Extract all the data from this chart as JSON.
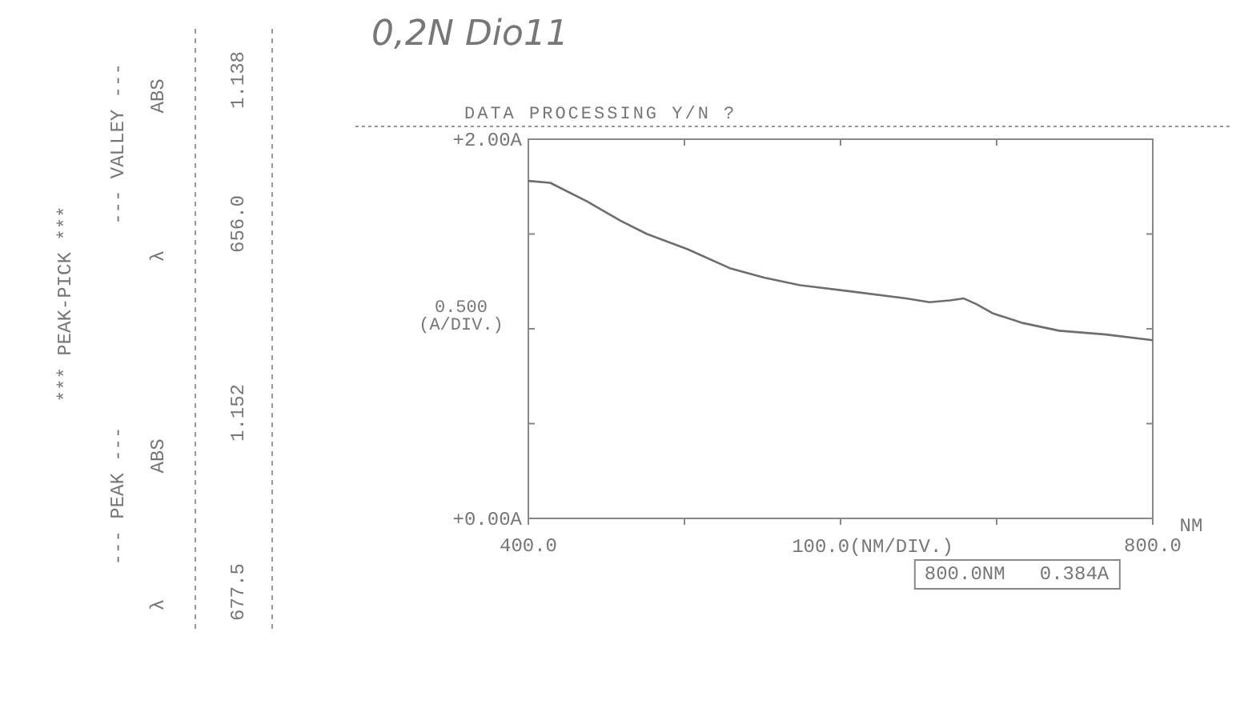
{
  "chart_data": {
    "type": "line",
    "title": "0,2N Dio11",
    "subtitle": "DATA PROCESSING Y/N ?",
    "xlabel": "100.0(NM/DIV.)",
    "ylabel": "0.500 (A/DIV.)",
    "x": [
      400,
      414,
      438,
      459,
      476,
      502,
      529,
      551,
      574,
      604,
      642,
      657,
      670,
      679,
      687,
      698,
      717,
      740,
      770,
      800
    ],
    "series": [
      {
        "color": "#6e6e6e",
        "values": [
          1.78,
          1.77,
          1.67,
          1.57,
          1.5,
          1.42,
          1.32,
          1.27,
          1.23,
          1.2,
          1.16,
          1.14,
          1.15,
          1.16,
          1.13,
          1.08,
          1.03,
          0.99,
          0.97,
          0.94
        ]
      }
    ],
    "xlim": [
      400,
      800
    ],
    "ylim": [
      0,
      2
    ],
    "xticks": [
      {
        "value": 400,
        "label": "400.0"
      },
      {
        "value": 500,
        "label": null
      },
      {
        "value": 600,
        "label": null
      },
      {
        "value": 700,
        "label": null
      },
      {
        "value": 800,
        "label": "800.0"
      }
    ],
    "yticks": [
      {
        "value": 0,
        "label": "+0.00A"
      },
      {
        "value": 0.5,
        "label": null
      },
      {
        "value": 1,
        "label": null
      },
      {
        "value": 1.5,
        "label": null
      },
      {
        "value": 2,
        "label": "+2.00A"
      }
    ],
    "grid": false,
    "marker": "none",
    "line_style": "solid",
    "annotations": [
      "NM",
      "800.0NM   0.384A",
      "*** PEAK-PICK ***",
      "--- PEAK ---",
      "--- VALLEY ---",
      "λ",
      "ABS",
      "λ",
      "ABS",
      "677.5",
      "1.152",
      "656.0",
      "1.138"
    ]
  }
}
